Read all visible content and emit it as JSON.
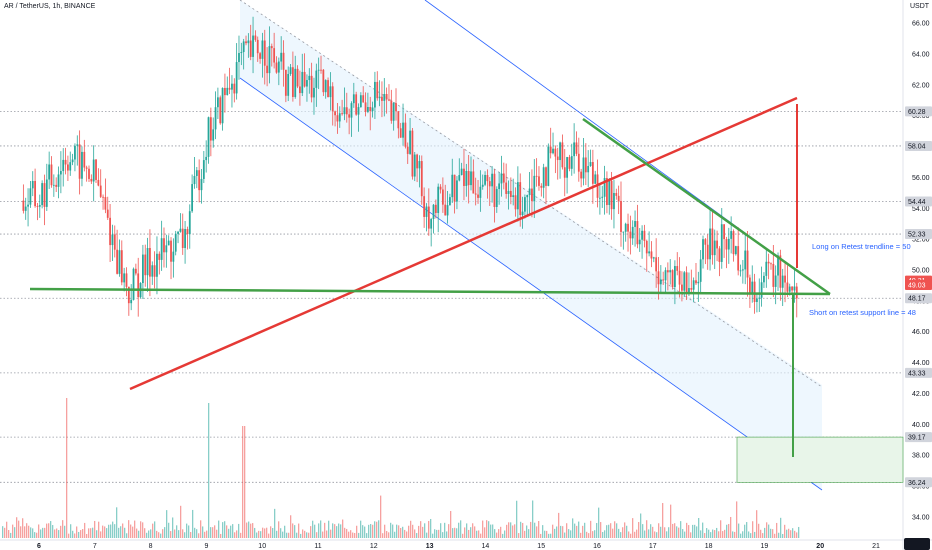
{
  "header": {
    "symbol_line": "AR / TetherUS, 1h, BINANCE",
    "unit": "USDT"
  },
  "annotations": {
    "long": "Long on Retest trendline = 50",
    "short": "Short on retest support line = 48"
  },
  "colors": {
    "up": "#26a69a",
    "down": "#ef5350",
    "channel": "#2962ff",
    "channel_fill": "#e3f2fd",
    "red_line": "#e53935",
    "green_line": "#43a047",
    "target_fill": "#e8f5e9",
    "dotted": "#9598a1"
  },
  "chart_data": {
    "type": "candlestick",
    "x_ticks": [
      "6",
      "7",
      "8",
      "9",
      "10",
      "11",
      "12",
      "13",
      "14",
      "15",
      "16",
      "17",
      "18",
      "19",
      "20",
      "21"
    ],
    "y_ticks": [
      "34.00",
      "36.00",
      "38.00",
      "40.00",
      "42.00",
      "44.00",
      "46.00",
      "48.00",
      "50.00",
      "52.00",
      "54.00",
      "56.00",
      "58.00",
      "60.00",
      "62.00",
      "64.00",
      "66.00"
    ],
    "ylim": [
      32.5,
      67.5
    ],
    "marked_levels": [
      {
        "label": "60.28",
        "value": 60.28,
        "tag": "gray"
      },
      {
        "label": "58.04",
        "value": 58.04,
        "tag": "gray"
      },
      {
        "label": "54.44",
        "value": 54.44,
        "tag": "gray"
      },
      {
        "label": "52.33",
        "value": 52.33,
        "tag": "gray"
      },
      {
        "label": "49.31",
        "value": 49.31,
        "tag": "red"
      },
      {
        "label": "49.03",
        "value": 49.03,
        "tag": "red"
      },
      {
        "label": "48.17",
        "value": 48.17,
        "tag": "gray"
      },
      {
        "label": "43.33",
        "value": 43.33,
        "tag": "gray"
      },
      {
        "label": "39.17",
        "value": 39.17,
        "tag": "gray"
      },
      {
        "label": "36.24",
        "value": 36.24,
        "tag": "gray"
      }
    ],
    "price_path": [
      [
        "6",
        54.5
      ],
      [
        "6.5",
        57.5
      ],
      [
        "7",
        56.0
      ],
      [
        "7.6",
        48.5
      ],
      [
        "8",
        50.5
      ],
      [
        "8.6",
        52.0
      ],
      [
        "9",
        58.5
      ],
      [
        "9.6",
        63.5
      ],
      [
        "10",
        64.5
      ],
      [
        "10.5",
        62.0
      ],
      [
        "11",
        62.0
      ],
      [
        "11.5",
        60.0
      ],
      [
        "12",
        61.5
      ],
      [
        "12.6",
        58.5
      ],
      [
        "13",
        53.5
      ],
      [
        "13.6",
        56.0
      ],
      [
        "14",
        55.5
      ],
      [
        "14.6",
        54.5
      ],
      [
        "15",
        56.5
      ],
      [
        "15.6",
        57.5
      ],
      [
        "16",
        56.0
      ],
      [
        "16.6",
        52.5
      ],
      [
        "17",
        50.5
      ],
      [
        "17.6",
        48.5
      ],
      [
        "18",
        51.5
      ],
      [
        "18.4",
        52.0
      ],
      [
        "18.8",
        49.0
      ],
      [
        "19.2",
        49.8
      ],
      [
        "19.6",
        49.1
      ]
    ]
  }
}
